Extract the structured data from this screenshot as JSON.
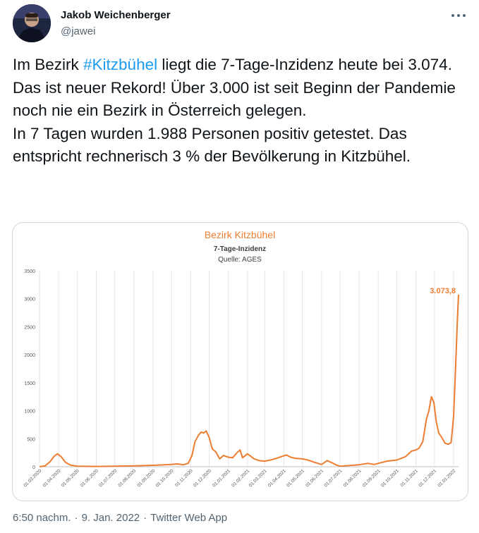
{
  "tweet": {
    "author_name": "Jakob Weichenberger",
    "author_handle": "@jawei",
    "text_before_hashtag": "Im Bezirk ",
    "hashtag": "#Kitzbühel",
    "text_after_hashtag": " liegt die 7-Tage-Inzidenz heute bei 3.074. Das ist neuer Rekord! Über 3.000 ist seit Beginn der Pandemie noch nie ein Bezirk in Österreich gelegen.",
    "text_line2": "In 7 Tagen wurden 1.988 Personen positiv getestet. Das entspricht rechnerisch 3 % der Bevölkerung in Kitzbühel.",
    "time": "6:50 nachm.",
    "date": "9. Jan. 2022",
    "source": "Twitter Web App",
    "separator": "·",
    "icons": {
      "avatar": "avatar-photo",
      "more": "more-horizontal-icon"
    }
  },
  "chart_data": {
    "type": "line",
    "title": "Bezirk Kitzbühel",
    "subtitle": "7-Tage-Inzidenz",
    "source": "Quelle: AGES",
    "ylim": [
      0,
      3500
    ],
    "yticks": [
      0,
      500,
      1000,
      1500,
      2000,
      2500,
      3000,
      3500
    ],
    "xlim": [
      "2020-03-01",
      "2022-01-09"
    ],
    "xticks": [
      "01.03.2020",
      "01.04.2020",
      "01.05.2020",
      "01.06.2020",
      "01.07.2020",
      "01.08.2020",
      "01.09.2020",
      "01.10.2020",
      "01.11.2020",
      "01.12.2020",
      "01.01.2021",
      "01.02.2021",
      "01.03.2021",
      "01.04.2021",
      "01.05.2021",
      "01.06.2021",
      "01.07.2021",
      "01.08.2021",
      "01.09.2021",
      "01.10.2021",
      "01.11.2021",
      "01.12.2021",
      "01.01.2022"
    ],
    "grid": "vertical",
    "line_color": "#ed7d31",
    "annotation": {
      "x": "2022-01-09",
      "y": 3073.8,
      "text": "3.073,8"
    },
    "series": [
      {
        "x": [
          "2020-03-01",
          "2020-03-10",
          "2020-03-18",
          "2020-03-25",
          "2020-03-30",
          "2020-04-05",
          "2020-04-12",
          "2020-04-20",
          "2020-05-01",
          "2020-06-01",
          "2020-07-01",
          "2020-08-01",
          "2020-09-01",
          "2020-10-01",
          "2020-10-10",
          "2020-10-20",
          "2020-10-28",
          "2020-11-03",
          "2020-11-08",
          "2020-11-14",
          "2020-11-18",
          "2020-11-22",
          "2020-11-26",
          "2020-12-01",
          "2020-12-06",
          "2020-12-12",
          "2020-12-18",
          "2020-12-24",
          "2021-01-01",
          "2021-01-08",
          "2021-01-15",
          "2021-01-20",
          "2021-01-24",
          "2021-02-01",
          "2021-02-07",
          "2021-02-12",
          "2021-02-20",
          "2021-03-01",
          "2021-03-10",
          "2021-03-20",
          "2021-03-28",
          "2021-04-05",
          "2021-04-12",
          "2021-04-20",
          "2021-05-01",
          "2021-05-10",
          "2021-05-20",
          "2021-06-01",
          "2021-06-10",
          "2021-06-18",
          "2021-06-25",
          "2021-07-01",
          "2021-08-01",
          "2021-08-15",
          "2021-08-25",
          "2021-09-01",
          "2021-09-15",
          "2021-10-01",
          "2021-10-15",
          "2021-10-25",
          "2021-11-01",
          "2021-11-06",
          "2021-11-12",
          "2021-11-18",
          "2021-11-22",
          "2021-11-26",
          "2021-11-30",
          "2021-12-04",
          "2021-12-08",
          "2021-12-13",
          "2021-12-18",
          "2021-12-23",
          "2021-12-28",
          "2022-01-01",
          "2022-01-04",
          "2022-01-07",
          "2022-01-09"
        ],
        "y": [
          0,
          15,
          90,
          190,
          230,
          180,
          80,
          30,
          10,
          5,
          10,
          15,
          25,
          40,
          50,
          35,
          60,
          200,
          450,
          570,
          620,
          600,
          640,
          520,
          320,
          260,
          140,
          200,
          170,
          160,
          250,
          300,
          160,
          230,
          180,
          140,
          110,
          100,
          120,
          150,
          180,
          210,
          170,
          150,
          140,
          120,
          80,
          40,
          110,
          70,
          30,
          10,
          35,
          60,
          40,
          60,
          100,
          120,
          180,
          280,
          300,
          330,
          450,
          850,
          1000,
          1250,
          1150,
          800,
          600,
          520,
          420,
          400,
          430,
          900,
          1700,
          2600,
          3073.8
        ]
      }
    ]
  }
}
